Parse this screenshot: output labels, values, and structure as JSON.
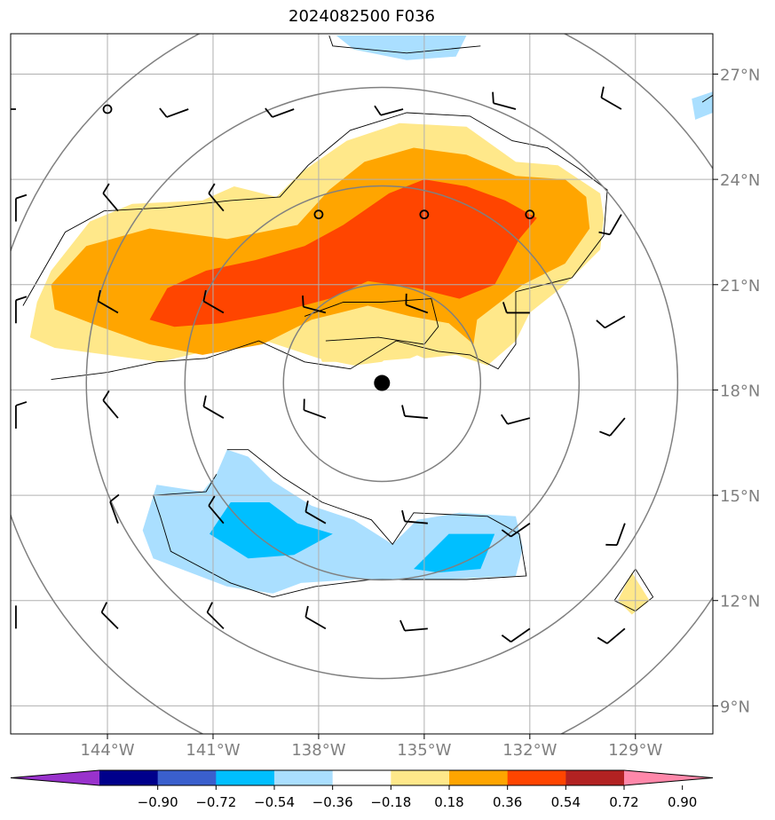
{
  "title": "2024082500 F036",
  "chart_data": {
    "type": "map",
    "projection": "lat-lon",
    "lon_range": [
      -146.75,
      -126.8
    ],
    "lat_range": [
      8.2,
      28.15
    ],
    "grid": true,
    "storm_center": {
      "lon": -136.2,
      "lat": 18.2
    },
    "range_rings_deg": [
      2.8,
      5.6,
      8.4,
      11.2
    ],
    "lat_ticks": [
      {
        "value": 9,
        "label": "9°N"
      },
      {
        "value": 12,
        "label": "12°N"
      },
      {
        "value": 15,
        "label": "15°N"
      },
      {
        "value": 18,
        "label": "18°N"
      },
      {
        "value": 21,
        "label": "21°N"
      },
      {
        "value": 24,
        "label": "24°N"
      },
      {
        "value": 27,
        "label": "27°N"
      }
    ],
    "lon_ticks": [
      {
        "value": -144,
        "label": "144°W"
      },
      {
        "value": -141,
        "label": "141°W"
      },
      {
        "value": -138,
        "label": "138°W"
      },
      {
        "value": -135,
        "label": "135°W"
      },
      {
        "value": -132,
        "label": "132°W"
      },
      {
        "value": -129,
        "label": "129°W"
      }
    ],
    "colorbar": {
      "levels": [
        "−0.90",
        "−0.72",
        "−0.54",
        "−0.36",
        "−0.18",
        "0.18",
        "0.36",
        "0.54",
        "0.72",
        "0.90"
      ],
      "colors": [
        "#9932cc",
        "#00008b",
        "#3a5fcd",
        "#00bfff",
        "#aadfff",
        "#ffffff",
        "#ffe88a",
        "#ffa500",
        "#ff4500",
        "#b22222",
        "#ff88aa"
      ],
      "extend": "both"
    },
    "shaded_regions": [
      {
        "level": "0.18-0.36",
        "color": "#ffe88a",
        "points": [
          [
            -146,
            20.5
          ],
          [
            -145.6,
            21.4
          ],
          [
            -144.5,
            22.8
          ],
          [
            -143.3,
            23.3
          ],
          [
            -141.3,
            23.4
          ],
          [
            -140.4,
            23.8
          ],
          [
            -139.2,
            23.5
          ],
          [
            -138.5,
            24.2
          ],
          [
            -137.2,
            25.1
          ],
          [
            -135.7,
            25.6
          ],
          [
            -133.8,
            25.5
          ],
          [
            -132.4,
            24.5
          ],
          [
            -131.2,
            24.4
          ],
          [
            -130,
            23.6
          ],
          [
            -129.9,
            22.9
          ],
          [
            -130,
            22
          ],
          [
            -131,
            21
          ],
          [
            -132,
            20.2
          ],
          [
            -132.4,
            19.4
          ],
          [
            -133.2,
            18.7
          ],
          [
            -134.1,
            19
          ],
          [
            -135,
            18.9
          ],
          [
            -135.7,
            19.2
          ],
          [
            -136.2,
            18.8
          ],
          [
            -137,
            18.7
          ],
          [
            -138,
            18.9
          ],
          [
            -139.5,
            19.4
          ],
          [
            -140.8,
            19.2
          ],
          [
            -142.5,
            18.8
          ],
          [
            -144,
            19
          ],
          [
            -145.5,
            19.2
          ],
          [
            -146.2,
            19.5
          ]
        ]
      },
      {
        "level": "0.18-0.36 (inner band)",
        "color": "#ffe88a",
        "points": [
          [
            -138.3,
            19.8
          ],
          [
            -137.5,
            20.1
          ],
          [
            -136.5,
            19.8
          ],
          [
            -135.5,
            19.4
          ],
          [
            -134.7,
            19.2
          ],
          [
            -135.4,
            18.9
          ],
          [
            -136.6,
            18.8
          ],
          [
            -137.9,
            18.8
          ]
        ]
      },
      {
        "level": "0.36-0.54",
        "color": "#ffa500",
        "points": [
          [
            -145.6,
            21.0
          ],
          [
            -144.6,
            22.1
          ],
          [
            -142.8,
            22.6
          ],
          [
            -140.6,
            22.3
          ],
          [
            -138.6,
            22.7
          ],
          [
            -137.7,
            23.7
          ],
          [
            -136.7,
            24.5
          ],
          [
            -135.3,
            24.9
          ],
          [
            -133.8,
            24.7
          ],
          [
            -132.4,
            24.1
          ],
          [
            -131.0,
            24.0
          ],
          [
            -130.4,
            23.5
          ],
          [
            -130.3,
            22.6
          ],
          [
            -131.0,
            21.6
          ],
          [
            -132.2,
            21.0
          ],
          [
            -133.5,
            20.0
          ],
          [
            -133.6,
            19.3
          ],
          [
            -134.3,
            19.9
          ],
          [
            -135.4,
            20.1
          ],
          [
            -136.6,
            20.4
          ],
          [
            -138.2,
            20.0
          ],
          [
            -139.6,
            19.3
          ],
          [
            -141.3,
            19.0
          ],
          [
            -142.8,
            19.3
          ],
          [
            -144.2,
            19.8
          ],
          [
            -145.5,
            20.3
          ]
        ]
      },
      {
        "level": "0.54-0.72",
        "color": "#ff4500",
        "points": [
          [
            -142.8,
            20.0
          ],
          [
            -142.3,
            20.9
          ],
          [
            -141.2,
            21.4
          ],
          [
            -139.8,
            21.7
          ],
          [
            -138.4,
            22.1
          ],
          [
            -137.3,
            22.7
          ],
          [
            -136.0,
            23.6
          ],
          [
            -135.0,
            24.0
          ],
          [
            -133.8,
            23.8
          ],
          [
            -132.7,
            23.4
          ],
          [
            -131.8,
            22.9
          ],
          [
            -132.3,
            22.3
          ],
          [
            -133.0,
            21.0
          ],
          [
            -134.0,
            20.6
          ],
          [
            -135.2,
            20.9
          ],
          [
            -136.6,
            21.1
          ],
          [
            -137.7,
            20.6
          ],
          [
            -139.2,
            20.2
          ],
          [
            -140.8,
            19.9
          ],
          [
            -142.1,
            19.8
          ]
        ]
      },
      {
        "level": "-0.36 to -0.18",
        "color": "#aadfff",
        "points": [
          [
            -140.6,
            16.3
          ],
          [
            -140.0,
            16.1
          ],
          [
            -139.3,
            15.4
          ],
          [
            -138.2,
            14.7
          ],
          [
            -137.0,
            14.3
          ],
          [
            -135.9,
            13.6
          ],
          [
            -135.2,
            14.3
          ],
          [
            -134.0,
            14.5
          ],
          [
            -132.4,
            14.4
          ],
          [
            -132.2,
            13.5
          ],
          [
            -132.4,
            12.7
          ],
          [
            -134.5,
            12.6
          ],
          [
            -137.0,
            12.6
          ],
          [
            -138.5,
            12.5
          ],
          [
            -139.3,
            12.2
          ],
          [
            -140.6,
            12.4
          ],
          [
            -142.7,
            13.2
          ],
          [
            -143.0,
            14.0
          ],
          [
            -142.6,
            15.3
          ],
          [
            -141.3,
            15.1
          ],
          [
            -140.9,
            15.6
          ]
        ]
      },
      {
        "level": "-0.54 to -0.36",
        "color": "#00bfff",
        "points": [
          [
            -140.5,
            14.8
          ],
          [
            -139.4,
            14.8
          ],
          [
            -138.6,
            14.2
          ],
          [
            -137.6,
            13.9
          ],
          [
            -138.7,
            13.3
          ],
          [
            -140.0,
            13.2
          ],
          [
            -141.1,
            13.9
          ]
        ]
      },
      {
        "level": "-0.54 to -0.36",
        "color": "#00bfff",
        "points": [
          [
            -134.3,
            13.9
          ],
          [
            -133.0,
            13.9
          ],
          [
            -133.4,
            12.9
          ],
          [
            -134.6,
            12.8
          ],
          [
            -135.3,
            12.9
          ]
        ]
      },
      {
        "level": "-0.36 to -0.18",
        "color": "#aadfff",
        "points": [
          [
            -137.5,
            28.1
          ],
          [
            -137.0,
            27.7
          ],
          [
            -135.5,
            27.4
          ],
          [
            -134.1,
            27.5
          ],
          [
            -133.8,
            28.1
          ]
        ]
      },
      {
        "level": "-0.36 to -0.18",
        "color": "#aadfff",
        "points": [
          [
            -127.4,
            26.3
          ],
          [
            -126.8,
            26.5
          ],
          [
            -126.8,
            25.9
          ],
          [
            -127.3,
            25.7
          ]
        ]
      },
      {
        "level": "0.18-0.36",
        "color": "#ffe88a",
        "points": [
          [
            -129.1,
            12.8
          ],
          [
            -128.6,
            12.0
          ],
          [
            -129.1,
            11.6
          ],
          [
            -129.5,
            12.0
          ]
        ]
      }
    ],
    "contour_lines": [
      [
        [
          -146.4,
          20.4
        ],
        [
          -145.2,
          22.5
        ],
        [
          -144.1,
          23.1
        ],
        [
          -142.3,
          23.2
        ],
        [
          -140.5,
          23.4
        ],
        [
          -139.1,
          23.5
        ],
        [
          -138.3,
          24.4
        ],
        [
          -137.1,
          25.4
        ],
        [
          -135.5,
          25.9
        ],
        [
          -133.7,
          25.8
        ],
        [
          -132.5,
          25.1
        ],
        [
          -131.5,
          24.9
        ],
        [
          -130.6,
          24.3
        ],
        [
          -129.8,
          23.7
        ],
        [
          -129.9,
          22.4
        ],
        [
          -130.8,
          21.2
        ],
        [
          -132.4,
          20.8
        ],
        [
          -132.4,
          19.3
        ],
        [
          -132.9,
          18.6
        ],
        [
          -133.7,
          19.0
        ],
        [
          -134.6,
          19.1
        ],
        [
          -135.8,
          19.4
        ],
        [
          -137.1,
          18.6
        ],
        [
          -138.4,
          18.8
        ],
        [
          -139.7,
          19.4
        ],
        [
          -141.2,
          18.9
        ],
        [
          -142.6,
          18.8
        ],
        [
          -144,
          18.5
        ],
        [
          -145.6,
          18.3
        ]
      ],
      [
        [
          -138.4,
          20.1
        ],
        [
          -137.3,
          20.5
        ],
        [
          -136.2,
          20.5
        ],
        [
          -134.8,
          20.6
        ],
        [
          -134.6,
          19.8
        ],
        [
          -135.0,
          19.3
        ],
        [
          -136.3,
          19.5
        ],
        [
          -137.8,
          19.4
        ]
      ],
      [
        [
          -140.6,
          16.3
        ],
        [
          -140.0,
          16.3
        ],
        [
          -139.0,
          15.5
        ],
        [
          -137.9,
          14.8
        ],
        [
          -136.5,
          14.3
        ],
        [
          -135.9,
          13.6
        ],
        [
          -135.3,
          14.5
        ],
        [
          -133.2,
          14.4
        ],
        [
          -132.3,
          13.9
        ],
        [
          -132.1,
          12.7
        ],
        [
          -133.8,
          12.6
        ],
        [
          -136.5,
          12.6
        ],
        [
          -138.1,
          12.4
        ],
        [
          -139.3,
          12.1
        ],
        [
          -140.5,
          12.5
        ],
        [
          -142.2,
          13.4
        ],
        [
          -142.5,
          14.4
        ],
        [
          -142.7,
          15.0
        ],
        [
          -141.2,
          15.1
        ],
        [
          -140.9,
          15.6
        ]
      ],
      [
        [
          -137.7,
          28.1
        ],
        [
          -137.6,
          27.8
        ],
        [
          -135.5,
          27.6
        ],
        [
          -133.4,
          27.8
        ]
      ],
      [
        [
          -127.1,
          26.2
        ],
        [
          -126.8,
          26.4
        ]
      ],
      [
        [
          -129.0,
          12.9
        ],
        [
          -128.5,
          12.1
        ],
        [
          -129.0,
          11.7
        ],
        [
          -129.6,
          12.0
        ],
        [
          -129.0,
          12.9
        ]
      ]
    ],
    "wind_barbs": [
      {
        "lon": -146.6,
        "lat": 26.0,
        "dir": 270,
        "barbs": 1
      },
      {
        "lon": -141.7,
        "lat": 26.0,
        "dir": 250,
        "barbs": 1
      },
      {
        "lon": -138.7,
        "lat": 26.0,
        "dir": 250,
        "barbs": 1
      },
      {
        "lon": -135.6,
        "lat": 26.0,
        "dir": 255,
        "barbs": 1
      },
      {
        "lon": -132.4,
        "lat": 26.0,
        "dir": 285,
        "barbs": 1
      },
      {
        "lon": -129.4,
        "lat": 26.0,
        "dir": 300,
        "barbs": 1
      },
      {
        "lon": -143.7,
        "lat": 23.1,
        "dir": 320,
        "barbs": 1
      },
      {
        "lon": -140.7,
        "lat": 23.1,
        "dir": 320,
        "barbs": 1
      },
      {
        "lon": -129.4,
        "lat": 23.0,
        "dir": 210,
        "barbs": 1
      },
      {
        "lon": -146.6,
        "lat": 22.8,
        "dir": 0,
        "barbs": 1
      },
      {
        "lon": -143.7,
        "lat": 20.2,
        "dir": 300,
        "barbs": 1
      },
      {
        "lon": -140.7,
        "lat": 20.2,
        "dir": 300,
        "barbs": 1
      },
      {
        "lon": -137.8,
        "lat": 20.2,
        "dir": 285,
        "barbs": 1
      },
      {
        "lon": -134.9,
        "lat": 20.2,
        "dir": 290,
        "barbs": 1
      },
      {
        "lon": -132.0,
        "lat": 20.2,
        "dir": 270,
        "barbs": 1
      },
      {
        "lon": -129.3,
        "lat": 20.1,
        "dir": 240,
        "barbs": 1
      },
      {
        "lon": -146.6,
        "lat": 19.9,
        "dir": 0,
        "barbs": 1
      },
      {
        "lon": -143.7,
        "lat": 17.2,
        "dir": 320,
        "barbs": 1
      },
      {
        "lon": -140.7,
        "lat": 17.2,
        "dir": 300,
        "barbs": 1
      },
      {
        "lon": -137.8,
        "lat": 17.2,
        "dir": 290,
        "barbs": 1
      },
      {
        "lon": -134.9,
        "lat": 17.2,
        "dir": 275,
        "barbs": 1
      },
      {
        "lon": -132.0,
        "lat": 17.2,
        "dir": 255,
        "barbs": 1
      },
      {
        "lon": -129.3,
        "lat": 17.2,
        "dir": 220,
        "barbs": 1
      },
      {
        "lon": -146.6,
        "lat": 16.9,
        "dir": 0,
        "barbs": 1
      },
      {
        "lon": -143.7,
        "lat": 14.2,
        "dir": 340,
        "barbs": 1
      },
      {
        "lon": -140.7,
        "lat": 14.2,
        "dir": 320,
        "barbs": 1
      },
      {
        "lon": -137.8,
        "lat": 14.2,
        "dir": 300,
        "barbs": 1
      },
      {
        "lon": -134.9,
        "lat": 14.2,
        "dir": 275,
        "barbs": 1
      },
      {
        "lon": -132.0,
        "lat": 14.2,
        "dir": 235,
        "barbs": 1
      },
      {
        "lon": -129.3,
        "lat": 14.2,
        "dir": 200,
        "barbs": 1
      },
      {
        "lon": -143.7,
        "lat": 11.2,
        "dir": 315,
        "barbs": 1
      },
      {
        "lon": -140.7,
        "lat": 11.2,
        "dir": 315,
        "barbs": 1
      },
      {
        "lon": -137.8,
        "lat": 11.2,
        "dir": 300,
        "barbs": 1
      },
      {
        "lon": -134.9,
        "lat": 11.2,
        "dir": 265,
        "barbs": 1
      },
      {
        "lon": -132.0,
        "lat": 11.2,
        "dir": 235,
        "barbs": 1
      },
      {
        "lon": -129.3,
        "lat": 11.2,
        "dir": 230,
        "barbs": 1
      },
      {
        "lon": -146.6,
        "lat": 11.2,
        "dir": 0,
        "barbs": 0
      }
    ],
    "calm_circles": [
      {
        "lon": -144.0,
        "lat": 26.0
      },
      {
        "lon": -138.0,
        "lat": 23.0
      },
      {
        "lon": -135.0,
        "lat": 23.0
      },
      {
        "lon": -132.0,
        "lat": 23.0
      }
    ]
  }
}
